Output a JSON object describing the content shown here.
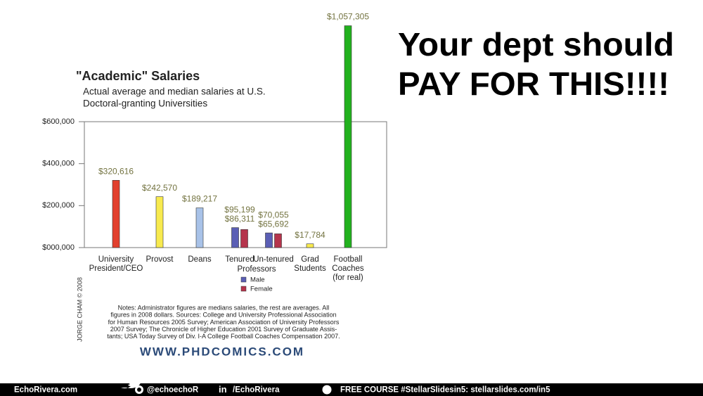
{
  "chart_data": {
    "type": "bar",
    "title": "\"Academic\" Salaries",
    "subtitle": [
      "Actual average and median salaries at U.S.",
      "Doctoral-granting Universities"
    ],
    "categories": [
      "University President/CEO",
      "Provost",
      "Deans",
      "Tenured",
      "Un-tenured",
      "Grad Students",
      "Football Coaches (for real)"
    ],
    "group_label": "Professors",
    "values": [
      320616,
      242570,
      189217,
      null,
      null,
      17784,
      1057305
    ],
    "value_labels": [
      "$320,616",
      "$242,570",
      "$189,217",
      null,
      null,
      "$17,784",
      "$1,057,305"
    ],
    "colors": [
      "#e2402e",
      "#f8ea4e",
      "#a8c2e8",
      null,
      null,
      "#f8ea4e",
      "#22b11e"
    ],
    "series": [
      {
        "name": "Male",
        "color": "#5b5fb5",
        "values": [
          null,
          null,
          null,
          95199,
          70055,
          null,
          null
        ],
        "value_labels": [
          null,
          null,
          null,
          "$95,199",
          "$70,055",
          null,
          null
        ]
      },
      {
        "name": "Female",
        "color": "#b5344c",
        "values": [
          null,
          null,
          null,
          86311,
          65692,
          null,
          null
        ],
        "value_labels": [
          null,
          null,
          null,
          "$86,311",
          "$65,692",
          null,
          null
        ]
      }
    ],
    "ylim": [
      0,
      600000
    ],
    "yticks": [
      {
        "value": 0,
        "label": "$000,000"
      },
      {
        "value": 200000,
        "label": "$200,000"
      },
      {
        "value": 400000,
        "label": "$400,000"
      },
      {
        "value": 600000,
        "label": "$600,000"
      }
    ],
    "notes": [
      "Notes: Administrator figures are medians salaries, the rest are averages. All",
      "figures in 2008 dollars. Sources: College and University Professional Association",
      "for Human Resources 2005 Survey; American Association of University Professors",
      "2007 Survey; The Chronicle of Higher Education 2001 Survey of Graduate Assis-",
      "tants; USA Today Survey of Div. I-A College Football Coaches Compensation 2007."
    ],
    "credit": "JORGE CHAM © 2008",
    "website": "WWW.PHDCOMICS.COM"
  },
  "headline": [
    "Your dept should",
    "PAY FOR THIS!!!!"
  ],
  "footer": {
    "site": "EchoRivera.com",
    "twitter": "@echoechoR",
    "linkedin": "/EchoRivera",
    "course": "FREE COURSE #StellarSlidesin5: stellarslides.com/in5"
  }
}
